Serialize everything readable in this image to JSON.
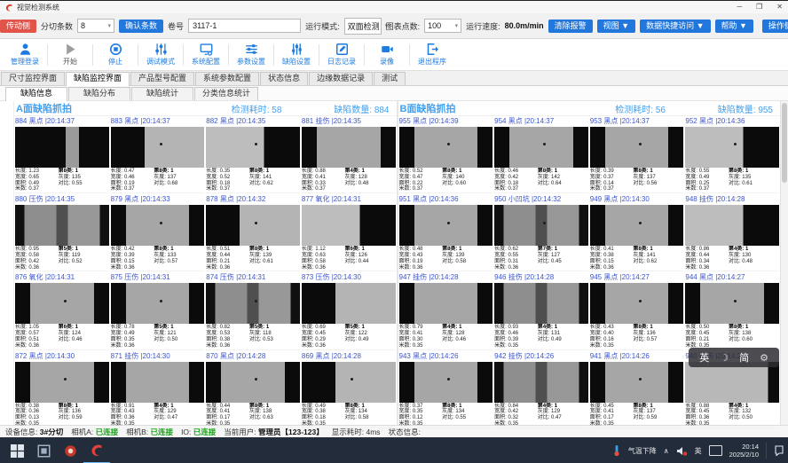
{
  "titlebar": {
    "app_title": "视觉检测系统",
    "controls": {
      "minimize": "─",
      "maximize": "❒",
      "close": "✕"
    }
  },
  "toolbar": {
    "drive_side": "传动侧",
    "slit_count_label": "分切条数",
    "slit_count_value": "8",
    "confirm_count": "确认条数",
    "roll_label": "卷号",
    "roll_value": "3117-1",
    "run_mode_label": "运行模式:",
    "run_mode_value": "双面检测",
    "chart_points_label": "图表点数:",
    "chart_points_value": "100",
    "speed_label": "运行速度:",
    "speed_value": "80.0m/min",
    "clear_alarm": "清除报警",
    "view_menu": "视图 ▼",
    "data_access_menu": "数据快捷访问 ▼",
    "help_menu": "帮助 ▼",
    "operate_side": "操作侧"
  },
  "iconbar": [
    {
      "label": "管理登录",
      "icon": "user-icon",
      "enabled": true
    },
    {
      "label": "开始",
      "icon": "play-icon",
      "enabled": false
    },
    {
      "label": "停止",
      "icon": "stop-icon",
      "enabled": true
    },
    {
      "label": "调试模式",
      "icon": "debug-sliders-icon",
      "enabled": true
    },
    {
      "label": "系统配置",
      "icon": "monitor-icon",
      "enabled": true
    },
    {
      "label": "参数设置",
      "icon": "params-sliders-icon",
      "enabled": true
    },
    {
      "label": "缺陷设置",
      "icon": "defect-sliders-icon",
      "enabled": true
    },
    {
      "label": "日志记录",
      "icon": "log-icon",
      "enabled": true
    },
    {
      "label": "录像",
      "icon": "camera-icon",
      "enabled": true
    },
    {
      "label": "退出程序",
      "icon": "exit-icon",
      "enabled": true
    }
  ],
  "tabs_main": {
    "active": 1,
    "items": [
      "尺寸监控界面",
      "缺陷监控界面",
      "产品型号配置",
      "系统参数配置",
      "状态信息",
      "边缘数据记录",
      "测试"
    ]
  },
  "tabs_sub": {
    "active": 0,
    "items": [
      "缺陷信息",
      "缺陷分布",
      "缺陷统计",
      "分类信息统计"
    ]
  },
  "cell_labels": {
    "length": "长度:",
    "width": "宽度:",
    "area": "面积:",
    "meter": "米数:",
    "gray": "灰度:",
    "contrast": "对比:"
  },
  "panels": [
    {
      "title": "A面缺陷抓拍",
      "time_label": "检测耗时:",
      "time_value": "58",
      "count_label": "缺陷数量:",
      "count_value": "884",
      "cells": [
        {
          "id": "884",
          "type": "黑点",
          "time": "20:14:37",
          "len": "1.23",
          "wid": "0.65",
          "area": "0.49",
          "meter": "0.37",
          "cls": "第8类: 1",
          "gray": "135",
          "contrast": "0.55",
          "pattern": 1,
          "speck": false
        },
        {
          "id": "883",
          "type": "黑点",
          "time": "20:14:37",
          "len": "0.47",
          "wid": "0.46",
          "area": "0.19",
          "meter": "0.37",
          "cls": "第8类: 1",
          "gray": "137",
          "contrast": "0.68",
          "pattern": 2,
          "speck": true
        },
        {
          "id": "882",
          "type": "黑点",
          "time": "20:14:35",
          "len": "0.35",
          "wid": "0.52",
          "area": "0.18",
          "meter": "0.37",
          "cls": "第8类: 1",
          "gray": "141",
          "contrast": "0.62",
          "pattern": 3,
          "speck": true
        },
        {
          "id": "881",
          "type": "挂伤",
          "time": "20:14:35",
          "len": "0.88",
          "wid": "0.41",
          "area": "0.33",
          "meter": "0.37",
          "cls": "第4类: 1",
          "gray": "128",
          "contrast": "0.48",
          "pattern": 4,
          "speck": false
        },
        {
          "id": "880",
          "type": "压伤",
          "time": "20:14:35",
          "len": "0.95",
          "wid": "0.58",
          "area": "0.42",
          "meter": "0.36",
          "cls": "第5类: 1",
          "gray": "119",
          "contrast": "0.52",
          "pattern": 5,
          "speck": false
        },
        {
          "id": "879",
          "type": "黑点",
          "time": "20:14:33",
          "len": "0.42",
          "wid": "0.39",
          "area": "0.15",
          "meter": "0.36",
          "cls": "第8类: 1",
          "gray": "133",
          "contrast": "0.57",
          "pattern": 4,
          "speck": true
        },
        {
          "id": "878",
          "type": "黑点",
          "time": "20:14:32",
          "len": "0.51",
          "wid": "0.44",
          "area": "0.21",
          "meter": "0.36",
          "cls": "第8类: 1",
          "gray": "139",
          "contrast": "0.61",
          "pattern": 2,
          "speck": true
        },
        {
          "id": "877",
          "type": "氧化",
          "time": "20:14:31",
          "len": "1.12",
          "wid": "0.63",
          "area": "0.58",
          "meter": "0.36",
          "cls": "第6类: 1",
          "gray": "126",
          "contrast": "0.44",
          "pattern": 3,
          "speck": false
        },
        {
          "id": "876",
          "type": "氧化",
          "time": "20:14:31",
          "len": "1.05",
          "wid": "0.57",
          "area": "0.51",
          "meter": "0.36",
          "cls": "第6类: 1",
          "gray": "124",
          "contrast": "0.46",
          "pattern": 4,
          "speck": true
        },
        {
          "id": "875",
          "type": "压伤",
          "time": "20:14:31",
          "len": "0.78",
          "wid": "0.49",
          "area": "0.35",
          "meter": "0.36",
          "cls": "第5类: 1",
          "gray": "121",
          "contrast": "0.50",
          "pattern": 4,
          "speck": true
        },
        {
          "id": "874",
          "type": "压伤",
          "time": "20:14:31",
          "len": "0.82",
          "wid": "0.53",
          "area": "0.38",
          "meter": "0.36",
          "cls": "第5类: 1",
          "gray": "118",
          "contrast": "0.53",
          "pattern": 5,
          "speck": true
        },
        {
          "id": "873",
          "type": "压伤",
          "time": "20:14:30",
          "len": "0.69",
          "wid": "0.45",
          "area": "0.29",
          "meter": "0.36",
          "cls": "第5类: 1",
          "gray": "122",
          "contrast": "0.49",
          "pattern": 2,
          "speck": false
        },
        {
          "id": "872",
          "type": "黑点",
          "time": "20:14:30",
          "len": "0.38",
          "wid": "0.36",
          "area": "0.13",
          "meter": "0.35",
          "cls": "第8类: 1",
          "gray": "136",
          "contrast": "0.59",
          "pattern": 4,
          "speck": true
        },
        {
          "id": "871",
          "type": "挂伤",
          "time": "20:14:30",
          "len": "0.91",
          "wid": "0.43",
          "area": "0.36",
          "meter": "0.35",
          "cls": "第4类: 1",
          "gray": "129",
          "contrast": "0.47",
          "pattern": 4,
          "speck": false
        },
        {
          "id": "870",
          "type": "黑点",
          "time": "20:14:28",
          "len": "0.44",
          "wid": "0.41",
          "area": "0.17",
          "meter": "0.35",
          "cls": "第8类: 1",
          "gray": "138",
          "contrast": "0.63",
          "pattern": 4,
          "speck": true
        },
        {
          "id": "869",
          "type": "黑点",
          "time": "20:14:28",
          "len": "0.49",
          "wid": "0.38",
          "area": "0.18",
          "meter": "0.35",
          "cls": "第8类: 1",
          "gray": "134",
          "contrast": "0.58",
          "pattern": 2,
          "speck": true
        }
      ]
    },
    {
      "title": "B面缺陷抓拍",
      "time_label": "检测耗时:",
      "time_value": "56",
      "count_label": "缺陷数量:",
      "count_value": "955",
      "cells": [
        {
          "id": "955",
          "type": "黑点",
          "time": "20:14:39",
          "len": "0.52",
          "wid": "0.47",
          "area": "0.22",
          "meter": "0.37",
          "cls": "第8类: 1",
          "gray": "140",
          "contrast": "0.60",
          "pattern": 4,
          "speck": true
        },
        {
          "id": "954",
          "type": "黑点",
          "time": "20:14:37",
          "len": "0.46",
          "wid": "0.42",
          "area": "0.18",
          "meter": "0.37",
          "cls": "第8类: 1",
          "gray": "142",
          "contrast": "0.64",
          "pattern": 4,
          "speck": true
        },
        {
          "id": "953",
          "type": "黑点",
          "time": "20:14:37",
          "len": "0.39",
          "wid": "0.37",
          "area": "0.14",
          "meter": "0.37",
          "cls": "第8类: 1",
          "gray": "137",
          "contrast": "0.56",
          "pattern": 4,
          "speck": true
        },
        {
          "id": "952",
          "type": "黑点",
          "time": "20:14:36",
          "len": "0.55",
          "wid": "0.49",
          "area": "0.25",
          "meter": "0.37",
          "cls": "第8类: 1",
          "gray": "135",
          "contrast": "0.61",
          "pattern": 3,
          "speck": true
        },
        {
          "id": "951",
          "type": "黑点",
          "time": "20:14:36",
          "len": "0.48",
          "wid": "0.43",
          "area": "0.19",
          "meter": "0.36",
          "cls": "第8类: 1",
          "gray": "139",
          "contrast": "0.58",
          "pattern": 4,
          "speck": true
        },
        {
          "id": "950",
          "type": "小凹坑",
          "time": "20:14:32",
          "len": "0.62",
          "wid": "0.55",
          "area": "0.31",
          "meter": "0.36",
          "cls": "第7类: 1",
          "gray": "127",
          "contrast": "0.45",
          "pattern": 5,
          "speck": true
        },
        {
          "id": "949",
          "type": "黑点",
          "time": "20:14:30",
          "len": "0.41",
          "wid": "0.38",
          "area": "0.15",
          "meter": "0.36",
          "cls": "第8类: 1",
          "gray": "141",
          "contrast": "0.62",
          "pattern": 4,
          "speck": true
        },
        {
          "id": "948",
          "type": "挂伤",
          "time": "20:14:28",
          "len": "0.86",
          "wid": "0.44",
          "area": "0.34",
          "meter": "0.36",
          "cls": "第4类: 1",
          "gray": "130",
          "contrast": "0.48",
          "pattern": 3,
          "speck": false
        },
        {
          "id": "947",
          "type": "挂伤",
          "time": "20:14:28",
          "len": "0.79",
          "wid": "0.41",
          "area": "0.30",
          "meter": "0.35",
          "cls": "第4类: 1",
          "gray": "128",
          "contrast": "0.46",
          "pattern": 4,
          "speck": false
        },
        {
          "id": "946",
          "type": "挂伤",
          "time": "20:14:28",
          "len": "0.93",
          "wid": "0.46",
          "area": "0.39",
          "meter": "0.35",
          "cls": "第4类: 1",
          "gray": "131",
          "contrast": "0.49",
          "pattern": 5,
          "speck": false
        },
        {
          "id": "945",
          "type": "黑点",
          "time": "20:14:27",
          "len": "0.43",
          "wid": "0.40",
          "area": "0.16",
          "meter": "0.35",
          "cls": "第8类: 1",
          "gray": "136",
          "contrast": "0.57",
          "pattern": 4,
          "speck": true
        },
        {
          "id": "944",
          "type": "黑点",
          "time": "20:14:27",
          "len": "0.50",
          "wid": "0.45",
          "area": "0.21",
          "meter": "0.35",
          "cls": "第8类: 1",
          "gray": "138",
          "contrast": "0.60",
          "pattern": 4,
          "speck": true
        },
        {
          "id": "943",
          "type": "黑点",
          "time": "20:14:26",
          "len": "0.37",
          "wid": "0.35",
          "area": "0.12",
          "meter": "0.35",
          "cls": "第8类: 1",
          "gray": "134",
          "contrast": "0.55",
          "pattern": 4,
          "speck": true
        },
        {
          "id": "942",
          "type": "挂伤",
          "time": "20:14:26",
          "len": "0.84",
          "wid": "0.42",
          "area": "0.32",
          "meter": "0.35",
          "cls": "第4类: 1",
          "gray": "129",
          "contrast": "0.47",
          "pattern": 5,
          "speck": false
        },
        {
          "id": "941",
          "type": "黑点",
          "time": "20:14:26",
          "len": "0.45",
          "wid": "0.41",
          "area": "0.17",
          "meter": "0.35",
          "cls": "第8类: 1",
          "gray": "137",
          "contrast": "0.59",
          "pattern": 4,
          "speck": true
        },
        {
          "id": "940",
          "type": "挂伤",
          "time": "20:14:26",
          "len": "0.88",
          "wid": "0.45",
          "area": "0.36",
          "meter": "0.35",
          "cls": "第4类: 1",
          "gray": "132",
          "contrast": "0.50",
          "pattern": 6,
          "speck": false
        }
      ]
    }
  ],
  "lang_widget": {
    "en": "英",
    "zh": "简"
  },
  "statusbar": {
    "device_label": "设备信息:",
    "device_value": "3#分切",
    "cam_a_label": "相机A:",
    "cam_a_value": "已连接",
    "cam_b_label": "相机B:",
    "cam_b_value": "已连接",
    "io_label": "IO:",
    "io_value": "已连接",
    "user_label": "当前用户:",
    "user_value": "管理员【123-123】",
    "display_label": "显示耗时:",
    "display_value": "4ms",
    "status_label": "状态信息:"
  },
  "taskbar": {
    "weather": "气温下降",
    "tray_caret": "∧",
    "lang_indicator": "英",
    "time": "20:14",
    "date": "2025/2/10"
  }
}
